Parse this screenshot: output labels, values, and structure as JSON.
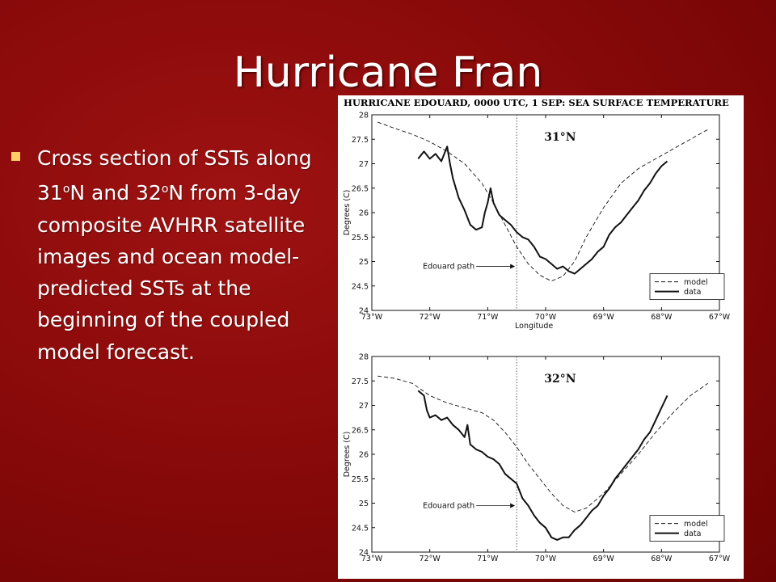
{
  "slide": {
    "title": "Hurricane Fran",
    "bullet": {
      "part1": "Cross section of SSTs along 31",
      "sup1": "o",
      "part2": "N and 32",
      "sup2": "o",
      "part3": "N from 3-day composite AVHRR satellite images and ocean model-predicted SSTs at the beginning of the coupled model forecast."
    }
  },
  "colors": {
    "background": "#8a0a0a",
    "title_text": "#ffffff",
    "bullet_marker": "#ffcc66"
  },
  "figure": {
    "title": "HURRICANE EDOUARD, 0000 UTC, 1 SEP: SEA SURFACE TEMPERATURE"
  },
  "chart_data": [
    {
      "type": "line",
      "panel_label": "31°N",
      "xlabel": "Longitude",
      "ylabel": "Degrees (C)",
      "xlim": [
        -73,
        -67
      ],
      "ylim": [
        24,
        28
      ],
      "xticks": [
        -73,
        -72,
        -71,
        -70,
        -69,
        -68,
        -67
      ],
      "xtick_labels": [
        "73°W",
        "72°W",
        "71°W",
        "70°W",
        "69°W",
        "68°W",
        "67°W"
      ],
      "yticks": [
        24,
        24.5,
        25,
        25.5,
        26,
        26.5,
        27,
        27.5,
        28
      ],
      "ytick_labels": [
        "24",
        "24.5",
        "25",
        "25.5",
        "26",
        "26.5",
        "27",
        "27.5",
        "28"
      ],
      "annotation": "Edouard path",
      "path_longitude": -70.5,
      "annotation_y": 24.9,
      "legend": {
        "position": "bottom-right",
        "entries": [
          "model",
          "data"
        ]
      },
      "series": [
        {
          "name": "model",
          "style": "dashed",
          "x": [
            -72.9,
            -72.6,
            -72.3,
            -72.0,
            -71.7,
            -71.4,
            -71.1,
            -70.9,
            -70.7,
            -70.5,
            -70.3,
            -70.1,
            -69.9,
            -69.7,
            -69.5,
            -69.3,
            -69.0,
            -68.7,
            -68.4,
            -68.1,
            -67.8,
            -67.5,
            -67.2
          ],
          "y": [
            27.85,
            27.72,
            27.6,
            27.45,
            27.25,
            27.0,
            26.6,
            26.2,
            25.75,
            25.3,
            24.95,
            24.72,
            24.6,
            24.7,
            25.0,
            25.5,
            26.1,
            26.6,
            26.9,
            27.1,
            27.3,
            27.5,
            27.7
          ]
        },
        {
          "name": "data",
          "style": "solid",
          "x": [
            -72.2,
            -72.1,
            -72.0,
            -71.9,
            -71.8,
            -71.7,
            -71.65,
            -71.6,
            -71.5,
            -71.4,
            -71.3,
            -71.2,
            -71.1,
            -71.05,
            -71.0,
            -70.95,
            -70.9,
            -70.8,
            -70.7,
            -70.6,
            -70.5,
            -70.4,
            -70.3,
            -70.2,
            -70.1,
            -70.0,
            -69.9,
            -69.8,
            -69.7,
            -69.6,
            -69.5,
            -69.4,
            -69.3,
            -69.2,
            -69.1,
            -69.0,
            -68.9,
            -68.8,
            -68.7,
            -68.6,
            -68.5,
            -68.4,
            -68.3,
            -68.2,
            -68.1,
            -68.0,
            -67.9
          ],
          "y": [
            27.1,
            27.25,
            27.1,
            27.2,
            27.05,
            27.35,
            27.0,
            26.7,
            26.3,
            26.05,
            25.75,
            25.65,
            25.7,
            26.0,
            26.2,
            26.5,
            26.2,
            25.95,
            25.85,
            25.75,
            25.6,
            25.5,
            25.45,
            25.3,
            25.1,
            25.05,
            24.95,
            24.85,
            24.9,
            24.8,
            24.75,
            24.85,
            24.95,
            25.05,
            25.2,
            25.3,
            25.55,
            25.7,
            25.8,
            25.95,
            26.1,
            26.25,
            26.45,
            26.6,
            26.8,
            26.95,
            27.05
          ]
        }
      ]
    },
    {
      "type": "line",
      "panel_label": "32°N",
      "xlabel": "",
      "ylabel": "Degrees (C)",
      "xlim": [
        -73,
        -67
      ],
      "ylim": [
        24,
        28
      ],
      "xticks": [
        -73,
        -72,
        -71,
        -70,
        -69,
        -68,
        -67
      ],
      "xtick_labels": [
        "73°W",
        "72°W",
        "71°W",
        "70°W",
        "69°W",
        "68°W",
        "67°W"
      ],
      "yticks": [
        24,
        24.5,
        25,
        25.5,
        26,
        26.5,
        27,
        27.5,
        28
      ],
      "ytick_labels": [
        "24",
        "24.5",
        "25",
        "25.5",
        "26",
        "26.5",
        "27",
        "27.5",
        "28"
      ],
      "annotation": "Edouard path",
      "path_longitude": -70.5,
      "annotation_y": 24.95,
      "legend": {
        "position": "bottom-right",
        "entries": [
          "model",
          "data"
        ]
      },
      "series": [
        {
          "name": "model",
          "style": "dashed",
          "x": [
            -72.9,
            -72.6,
            -72.3,
            -72.0,
            -71.7,
            -71.4,
            -71.1,
            -70.9,
            -70.7,
            -70.5,
            -70.3,
            -70.1,
            -69.9,
            -69.7,
            -69.5,
            -69.3,
            -69.0,
            -68.7,
            -68.4,
            -68.1,
            -67.8,
            -67.5,
            -67.2
          ],
          "y": [
            27.6,
            27.55,
            27.45,
            27.2,
            27.05,
            26.95,
            26.85,
            26.7,
            26.45,
            26.15,
            25.8,
            25.5,
            25.2,
            24.95,
            24.82,
            24.9,
            25.2,
            25.6,
            26.0,
            26.45,
            26.85,
            27.2,
            27.45
          ]
        },
        {
          "name": "data",
          "style": "solid",
          "x": [
            -72.2,
            -72.1,
            -72.05,
            -72.0,
            -71.9,
            -71.8,
            -71.7,
            -71.6,
            -71.5,
            -71.4,
            -71.35,
            -71.3,
            -71.2,
            -71.1,
            -71.0,
            -70.9,
            -70.8,
            -70.7,
            -70.6,
            -70.5,
            -70.4,
            -70.3,
            -70.2,
            -70.1,
            -70.0,
            -69.9,
            -69.8,
            -69.7,
            -69.6,
            -69.5,
            -69.4,
            -69.3,
            -69.2,
            -69.1,
            -69.0,
            -68.9,
            -68.8,
            -68.7,
            -68.6,
            -68.5,
            -68.4,
            -68.3,
            -68.2,
            -68.1,
            -68.0,
            -67.9
          ],
          "y": [
            27.3,
            27.2,
            26.9,
            26.75,
            26.8,
            26.7,
            26.75,
            26.6,
            26.5,
            26.35,
            26.6,
            26.2,
            26.1,
            26.05,
            25.95,
            25.9,
            25.8,
            25.6,
            25.5,
            25.4,
            25.1,
            24.95,
            24.75,
            24.6,
            24.5,
            24.3,
            24.25,
            24.3,
            24.3,
            24.45,
            24.55,
            24.7,
            24.85,
            24.95,
            25.15,
            25.3,
            25.5,
            25.65,
            25.8,
            25.95,
            26.1,
            26.3,
            26.45,
            26.7,
            26.95,
            27.2
          ]
        }
      ]
    }
  ]
}
